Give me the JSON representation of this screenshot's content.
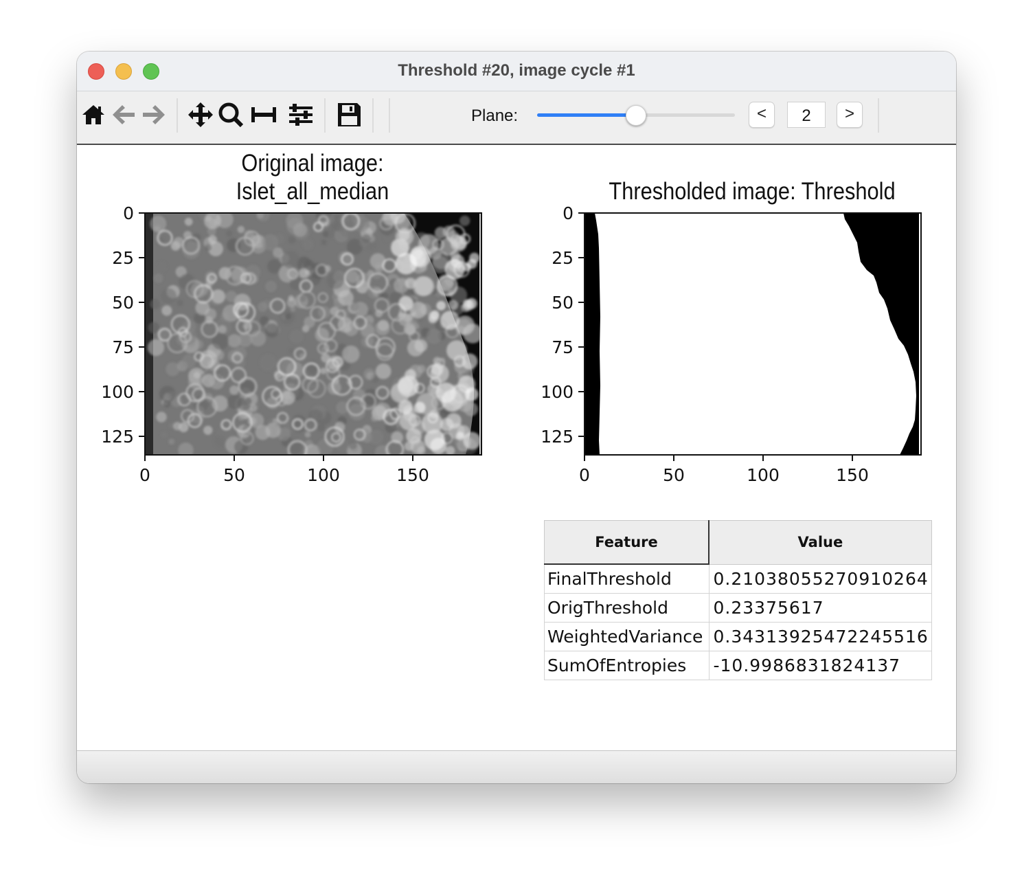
{
  "window": {
    "title": "Threshold #20, image cycle #1"
  },
  "toolbar": {
    "icons": [
      "home-icon",
      "back-arrow-icon",
      "forward-arrow-icon",
      "pan-icon",
      "zoom-icon",
      "subplot-icon",
      "configure-icon",
      "save-icon"
    ],
    "plane_label": "Plane:",
    "plane_value": "2",
    "plane_fraction": 0.5,
    "prev_label": "<",
    "next_label": ">"
  },
  "plots": {
    "original": {
      "title_line1": "Original image:",
      "title_line2": "Islet_all_median",
      "y_ticks": [
        "0",
        "25",
        "50",
        "75",
        "100",
        "125"
      ],
      "x_ticks": [
        "0",
        "50",
        "100",
        "150"
      ]
    },
    "thresholded": {
      "title": "Thresholded image: Threshold",
      "y_ticks": [
        "0",
        "25",
        "50",
        "75",
        "100",
        "125"
      ],
      "x_ticks": [
        "0",
        "50",
        "100",
        "150"
      ]
    }
  },
  "table": {
    "headers": [
      "Feature",
      "Value"
    ],
    "rows": [
      {
        "feature": "FinalThreshold",
        "value": "0.21038055270910264"
      },
      {
        "feature": "OrigThreshold",
        "value": "0.23375617"
      },
      {
        "feature": "WeightedVariance",
        "value": "0.34313925472245516"
      },
      {
        "feature": "SumOfEntropies",
        "value": "-10.9986831824137"
      }
    ]
  }
}
